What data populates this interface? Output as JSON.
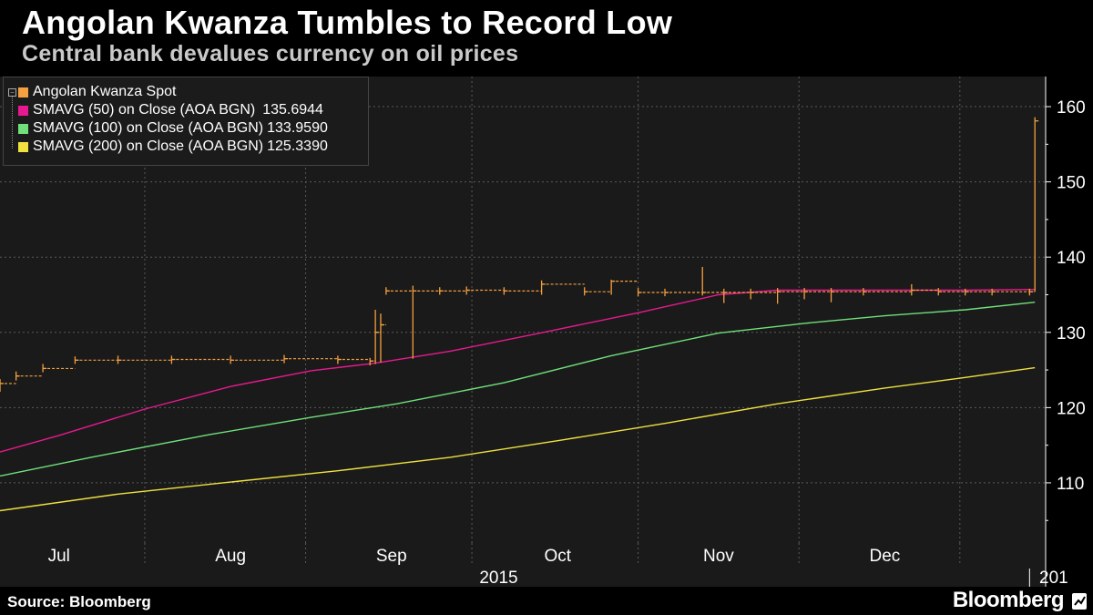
{
  "header": {
    "title": "Angolan Kwanza Tumbles to Record Low",
    "subtitle": "Central bank devalues currency on oil prices"
  },
  "footer": {
    "source": "Source: Bloomberg",
    "brand": "Bloomberg"
  },
  "colors": {
    "background": "#000000",
    "plot_background": "#1a1a1a",
    "grid": "#5a5a5a",
    "spot": "#f5a040",
    "sma50": "#e8198f",
    "sma100": "#6fe07a",
    "sma200": "#f0e040"
  },
  "chart_data": {
    "type": "line",
    "legend_position": "top-left",
    "grid": true,
    "ylim": [
      102,
      164
    ],
    "y_ticks": [
      110,
      120,
      130,
      140,
      150,
      160
    ],
    "x_range": [
      "2015-06-23",
      "2016-01-04"
    ],
    "x_month_labels": [
      {
        "label": "Jul",
        "date": "2015-07-04"
      },
      {
        "label": "Aug",
        "date": "2015-08-05"
      },
      {
        "label": "Sep",
        "date": "2015-09-04"
      },
      {
        "label": "Oct",
        "date": "2015-10-05"
      },
      {
        "label": "Nov",
        "date": "2015-11-04"
      },
      {
        "label": "Dec",
        "date": "2015-12-05"
      }
    ],
    "x_year_labels": [
      {
        "label": "2015",
        "date": "2015-09-24"
      },
      {
        "label": "201",
        "date": "2016-01-04"
      }
    ],
    "series": [
      {
        "name": "Angolan Kwanza Spot",
        "color": "#f5a040",
        "style": "bars",
        "x": [
          "2015-06-23",
          "2015-06-26",
          "2015-07-01",
          "2015-07-07",
          "2015-07-15",
          "2015-07-25",
          "2015-08-05",
          "2015-08-15",
          "2015-08-25",
          "2015-08-31",
          "2015-09-01",
          "2015-09-02",
          "2015-09-03",
          "2015-09-08",
          "2015-09-13",
          "2015-09-18",
          "2015-09-25",
          "2015-10-02",
          "2015-10-10",
          "2015-10-15",
          "2015-10-20",
          "2015-10-25",
          "2015-11-01",
          "2015-11-05",
          "2015-11-10",
          "2015-11-15",
          "2015-11-20",
          "2015-11-25",
          "2015-12-01",
          "2015-12-10",
          "2015-12-15",
          "2015-12-20",
          "2015-12-25",
          "2016-01-01",
          "2016-01-02"
        ],
        "close": [
          123.2,
          124.2,
          125.2,
          126.3,
          126.3,
          126.4,
          126.3,
          126.5,
          126.4,
          126.2,
          130.0,
          131.0,
          135.5,
          135.5,
          135.5,
          135.6,
          135.5,
          136.4,
          135.4,
          136.8,
          135.3,
          135.3,
          135.3,
          135.3,
          135.3,
          135.4,
          135.4,
          135.4,
          135.4,
          135.6,
          135.4,
          135.4,
          135.4,
          135.4,
          158.1
        ],
        "high": [
          123.8,
          124.8,
          125.8,
          126.8,
          126.9,
          126.9,
          126.9,
          127.0,
          126.9,
          126.6,
          133.0,
          132.5,
          136.0,
          136.2,
          136.0,
          136.1,
          136.0,
          136.9,
          136.0,
          137.0,
          135.9,
          135.8,
          138.7,
          135.8,
          135.8,
          135.9,
          135.9,
          135.9,
          135.9,
          136.4,
          135.9,
          135.8,
          135.8,
          135.8,
          158.6
        ],
        "low": [
          122.1,
          123.6,
          124.7,
          125.8,
          125.8,
          125.8,
          125.8,
          125.9,
          125.8,
          125.6,
          125.8,
          126.0,
          135.0,
          126.5,
          135.0,
          135.0,
          135.0,
          135.0,
          134.9,
          135.0,
          134.8,
          134.8,
          134.9,
          133.9,
          134.4,
          133.8,
          134.4,
          134.0,
          134.9,
          134.9,
          134.9,
          134.9,
          134.9,
          134.9,
          135.4
        ]
      },
      {
        "name": "SMAVG (50) on Close (AOA BGN)",
        "value_label": "135.6944",
        "color": "#e8198f",
        "style": "line",
        "x": [
          "2015-06-23",
          "2015-07-04",
          "2015-07-20",
          "2015-08-05",
          "2015-08-20",
          "2015-09-01",
          "2015-09-15",
          "2015-10-01",
          "2015-10-20",
          "2015-11-04",
          "2015-11-15",
          "2015-12-01",
          "2015-12-20",
          "2016-01-02"
        ],
        "values": [
          114.1,
          116.3,
          119.8,
          122.8,
          124.9,
          125.9,
          127.5,
          129.8,
          132.6,
          135.0,
          135.6,
          135.6,
          135.6,
          135.7
        ]
      },
      {
        "name": "SMAVG (100) on Close (AOA BGN)",
        "value_label": "133.9590",
        "color": "#6fe07a",
        "style": "line",
        "x": [
          "2015-06-23",
          "2015-07-10",
          "2015-08-01",
          "2015-08-20",
          "2015-09-05",
          "2015-09-25",
          "2015-10-15",
          "2015-11-04",
          "2015-11-20",
          "2015-12-05",
          "2015-12-20",
          "2016-01-02"
        ],
        "values": [
          110.9,
          113.4,
          116.4,
          118.7,
          120.5,
          123.3,
          126.9,
          129.9,
          131.2,
          132.2,
          133.0,
          134.0
        ]
      },
      {
        "name": "SMAVG (200) on Close (AOA BGN)",
        "value_label": "125.3390",
        "color": "#f0e040",
        "style": "line",
        "x": [
          "2015-06-23",
          "2015-07-15",
          "2015-08-05",
          "2015-08-25",
          "2015-09-15",
          "2015-10-05",
          "2015-10-25",
          "2015-11-15",
          "2015-12-05",
          "2015-12-20",
          "2016-01-02"
        ],
        "values": [
          106.3,
          108.5,
          110.1,
          111.6,
          113.4,
          115.6,
          117.9,
          120.5,
          122.6,
          124.0,
          125.3
        ]
      }
    ]
  }
}
